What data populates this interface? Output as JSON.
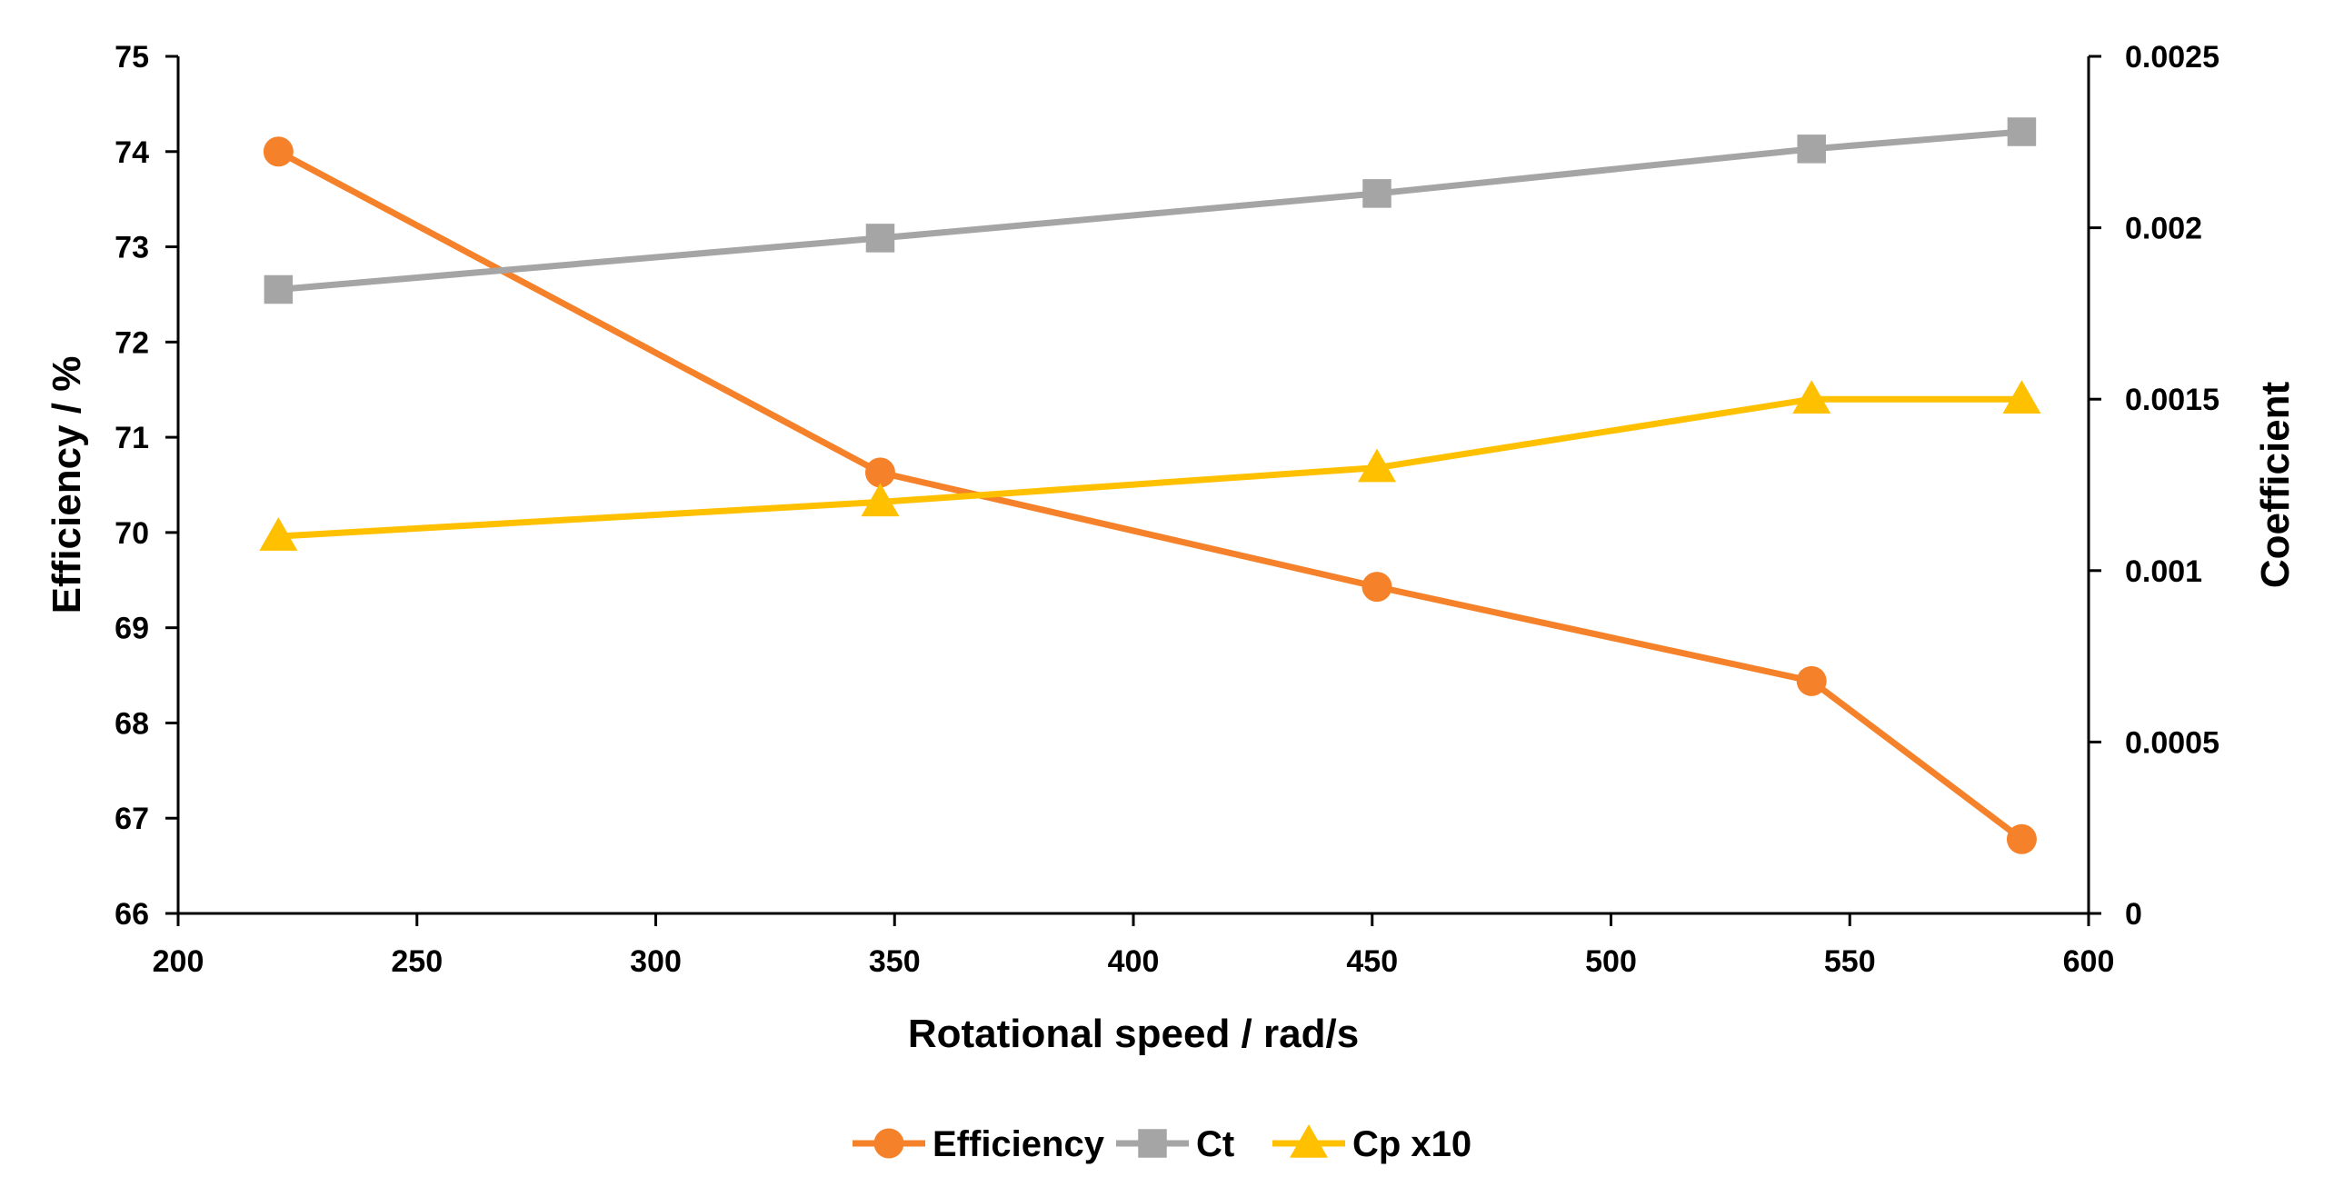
{
  "chart_data": {
    "type": "line",
    "title": "",
    "xlabel": "Rotational speed / rad/s",
    "ylabel": "Efficiency / %",
    "y2label": "Coefficient",
    "xlim": [
      200,
      600
    ],
    "ylim": [
      66,
      75
    ],
    "y2lim": [
      0,
      0.0025
    ],
    "x_ticks": [
      "200",
      "250",
      "300",
      "350",
      "400",
      "450",
      "500",
      "550",
      "600"
    ],
    "y_ticks": [
      "66",
      "67",
      "68",
      "69",
      "70",
      "71",
      "72",
      "73",
      "74",
      "75"
    ],
    "y2_ticks": [
      "0",
      "0.0005",
      "0.001",
      "0.0015",
      "0.002",
      "0.0025"
    ],
    "grid": false,
    "legend_position": "bottom",
    "series": [
      {
        "name": "Efficiency",
        "axis": "left",
        "marker": "circle",
        "color": "#F5822A",
        "x": [
          221,
          347,
          451,
          542,
          586
        ],
        "values": [
          74.0,
          70.63,
          69.43,
          68.44,
          66.78
        ]
      },
      {
        "name": "Ct",
        "axis": "right",
        "marker": "square",
        "color": "#A5A5A5",
        "x": [
          221,
          347,
          451,
          542,
          586
        ],
        "values": [
          0.00182,
          0.00197,
          0.0021,
          0.00223,
          0.00228
        ]
      },
      {
        "name": "Cp x10",
        "axis": "right",
        "marker": "triangle",
        "color": "#FFC000",
        "x": [
          221,
          347,
          451,
          542,
          586
        ],
        "values": [
          0.0011,
          0.0012,
          0.0013,
          0.0015,
          0.0015
        ]
      }
    ]
  }
}
